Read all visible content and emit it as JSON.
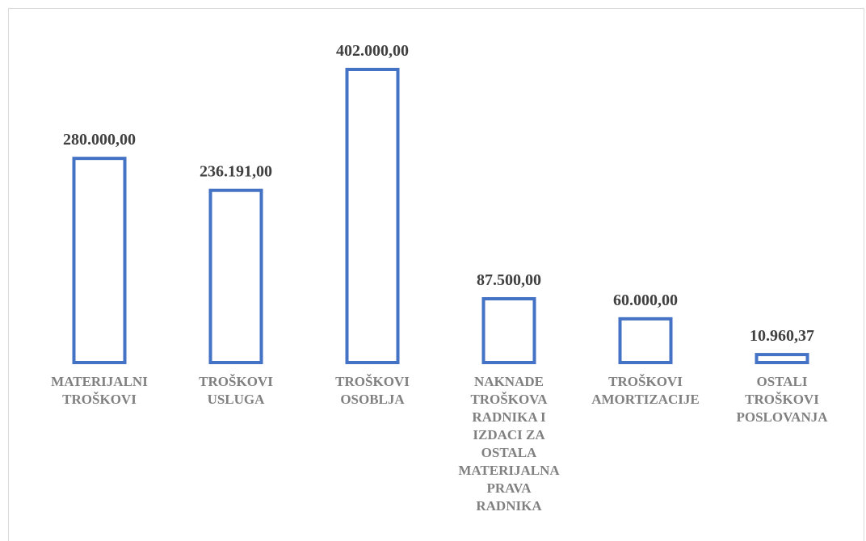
{
  "chart_data": {
    "type": "bar",
    "categories": [
      [
        "MATERIJALNI",
        "TROŠKOVI"
      ],
      [
        "TROŠKOVI",
        "USLUGA"
      ],
      [
        "TROŠKOVI",
        "OSOBLJA"
      ],
      [
        "NAKNADE",
        "TROŠKOVA",
        "RADNIKA I",
        "IZDACI ZA",
        "OSTALA",
        "MATERIJALNA",
        "PRAVA",
        "RADNIKA"
      ],
      [
        "TROŠKOVI",
        "AMORTIZACIJE"
      ],
      [
        "OSTALI",
        "TROŠKOVI",
        "POSLOVANJA"
      ]
    ],
    "values": [
      280000.0,
      236191.0,
      402000.0,
      87500.0,
      60000.0,
      10960.37
    ],
    "value_labels": [
      "280.000,00",
      "236.191,00",
      "402.000,00",
      "87.500,00",
      "60.000,00",
      "10.960,37"
    ],
    "title": "",
    "xlabel": "",
    "ylabel": "",
    "ylim": [
      0,
      402000
    ],
    "grid": false,
    "bar_style": "outline",
    "colors": {
      "bar_stroke": "#4472c4",
      "value_text": "#404040",
      "category_text": "#808080",
      "frame": "#d9d9d9"
    }
  }
}
